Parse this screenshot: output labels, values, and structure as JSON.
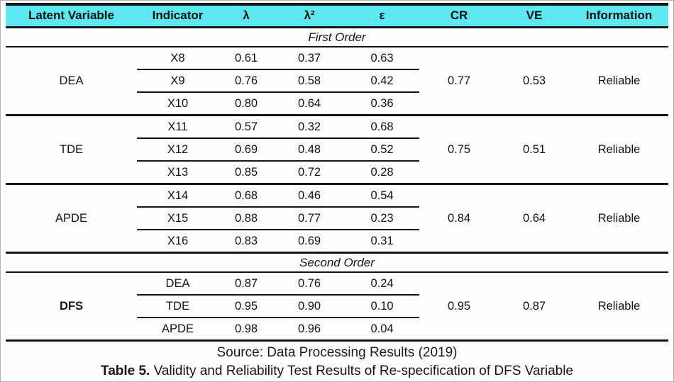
{
  "header": {
    "columns": [
      "Latent Variable",
      "Indicator",
      "λ",
      "λ²",
      "ε",
      "CR",
      "VE",
      "Information"
    ]
  },
  "sections": {
    "first": "First Order",
    "second": "Second Order"
  },
  "groups": [
    {
      "latent": "DEA",
      "rows": [
        [
          "X8",
          "0.61",
          "0.37",
          "0.63"
        ],
        [
          "X9",
          "0.76",
          "0.58",
          "0.42"
        ],
        [
          "X10",
          "0.80",
          "0.64",
          "0.36"
        ]
      ],
      "cr": "0.77",
      "ve": "0.53",
      "info": "Reliable"
    },
    {
      "latent": "TDE",
      "rows": [
        [
          "X11",
          "0.57",
          "0.32",
          "0.68"
        ],
        [
          "X12",
          "0.69",
          "0.48",
          "0.52"
        ],
        [
          "X13",
          "0.85",
          "0.72",
          "0.28"
        ]
      ],
      "cr": "0.75",
      "ve": "0.51",
      "info": "Reliable"
    },
    {
      "latent": "APDE",
      "rows": [
        [
          "X14",
          "0.68",
          "0.46",
          "0.54"
        ],
        [
          "X15",
          "0.88",
          "0.77",
          "0.23"
        ],
        [
          "X16",
          "0.83",
          "0.69",
          "0.31"
        ]
      ],
      "cr": "0.84",
      "ve": "0.64",
      "info": "Reliable"
    },
    {
      "latent": "DFS",
      "rows": [
        [
          "DEA",
          "0.87",
          "0.76",
          "0.24"
        ],
        [
          "TDE",
          "0.95",
          "0.90",
          "0.10"
        ],
        [
          "APDE",
          "0.98",
          "0.96",
          "0.04"
        ]
      ],
      "cr": "0.95",
      "ve": "0.87",
      "info": "Reliable"
    }
  ],
  "footer": {
    "source": "Source: Data Processing Results (2019)",
    "caption_label": "Table 5.",
    "caption_text": "Validity and Reliability Test Results of Re-specification of DFS Variable"
  },
  "colors": {
    "header_bg": "#5ce8ef",
    "border": "#141414"
  }
}
